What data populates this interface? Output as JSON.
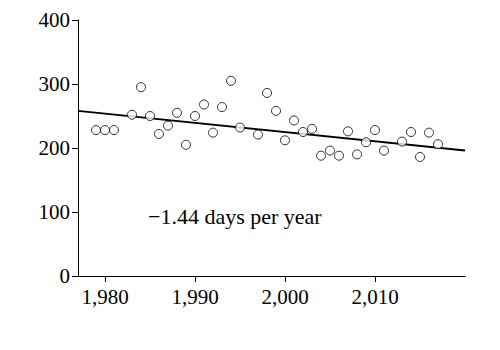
{
  "chart_data": {
    "type": "scatter",
    "x": [
      1979,
      1980,
      1981,
      1983,
      1984,
      1985,
      1986,
      1987,
      1988,
      1989,
      1990,
      1991,
      1992,
      1993,
      1994,
      1995,
      1997,
      1998,
      1999,
      2000,
      2001,
      2002,
      2003,
      2004,
      2005,
      2006,
      2007,
      2008,
      2009,
      2010,
      2011,
      2013,
      2014,
      2015,
      2016,
      2017
    ],
    "values": [
      228,
      228,
      228,
      252,
      295,
      250,
      222,
      235,
      255,
      205,
      250,
      268,
      224,
      264,
      305,
      232,
      221,
      286,
      258,
      212,
      243,
      225,
      230,
      188,
      196,
      188,
      226,
      190,
      209,
      228,
      196,
      210,
      225,
      186,
      224,
      206
    ],
    "color": "#000000",
    "marker": "open circle",
    "trend_line": {
      "x": [
        1977,
        2020
      ],
      "values": [
        258,
        196
      ]
    },
    "annotation": "−1.44 days per year",
    "xlim": [
      1977,
      2020
    ],
    "xticks": [
      1980,
      1990,
      2000,
      2010
    ],
    "ylim": [
      0,
      400
    ],
    "yticks": [
      0,
      100,
      200,
      300,
      400
    ],
    "grid": false
  }
}
